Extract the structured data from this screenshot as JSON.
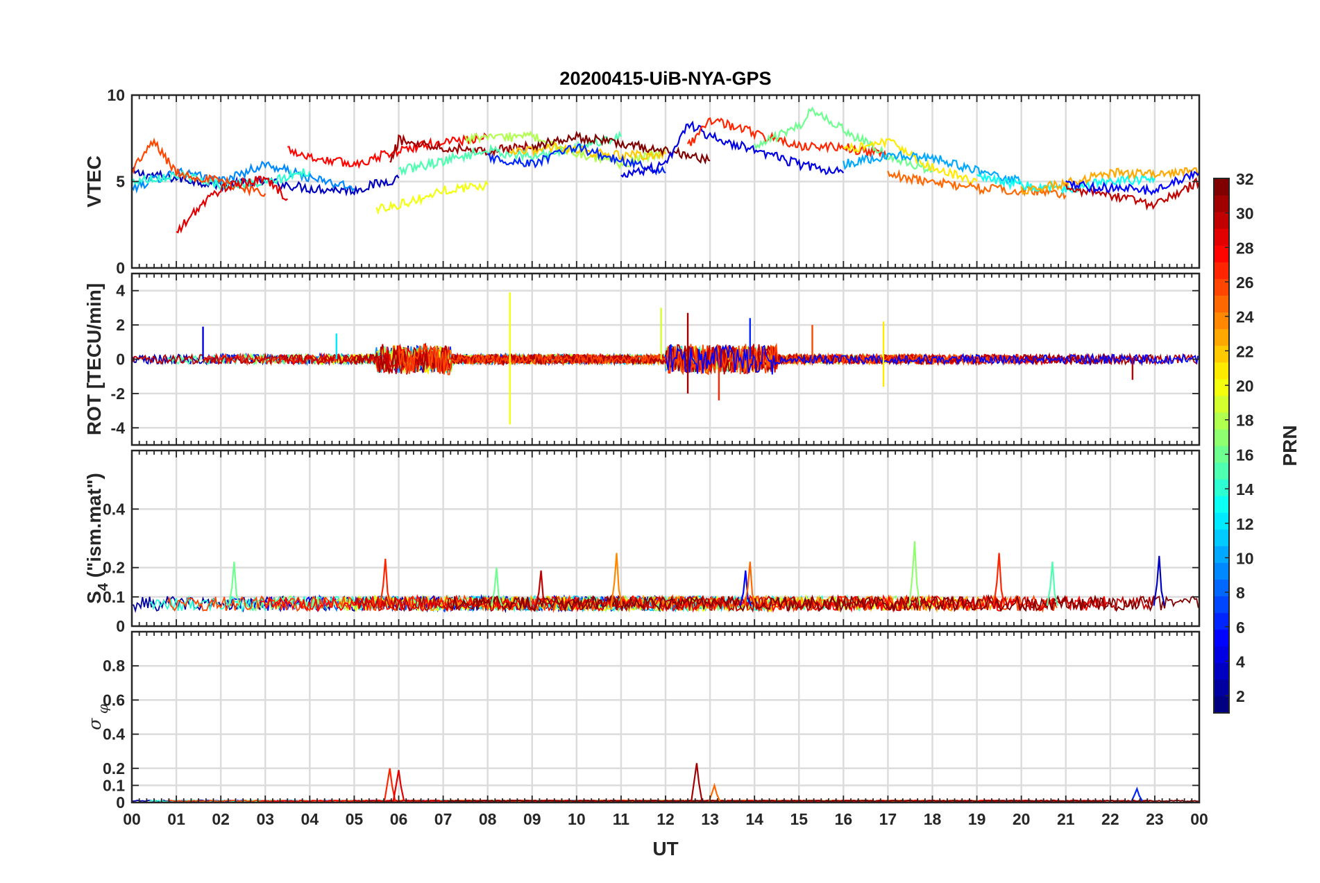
{
  "title": "20200415-UiB-NYA-GPS",
  "xlabel": "UT",
  "x_ticks": [
    "00",
    "01",
    "02",
    "03",
    "04",
    "05",
    "06",
    "07",
    "08",
    "09",
    "10",
    "11",
    "12",
    "13",
    "14",
    "15",
    "16",
    "17",
    "18",
    "19",
    "20",
    "21",
    "22",
    "23",
    "00"
  ],
  "colorbar": {
    "label": "PRN",
    "range": [
      1,
      32
    ],
    "ticks": [
      2,
      4,
      6,
      8,
      10,
      12,
      14,
      16,
      18,
      20,
      22,
      24,
      26,
      28,
      30,
      32
    ],
    "colormap": "jet",
    "levels": 32
  },
  "chart_data": [
    {
      "type": "line",
      "panel": "VTEC",
      "ylabel": "VTEC",
      "ylim": [
        0,
        10
      ],
      "yticks": [
        0,
        5,
        10
      ],
      "xlim_hours": [
        0,
        24
      ],
      "grid": true,
      "series": [
        {
          "prn": 3,
          "x": [
            0,
            1,
            2,
            3,
            4,
            5,
            6
          ],
          "y": [
            5.5,
            5.2,
            4.8,
            5.0,
            4.6,
            4.5,
            5.2
          ]
        },
        {
          "prn": 9,
          "x": [
            0,
            1,
            2,
            3,
            4,
            5
          ],
          "y": [
            4.6,
            5.6,
            5.0,
            6.0,
            5.2,
            4.6
          ]
        },
        {
          "prn": 14,
          "x": [
            0,
            1,
            2,
            3,
            4
          ],
          "y": [
            5.0,
            5.4,
            4.8,
            4.9,
            5.6
          ]
        },
        {
          "prn": 26,
          "x": [
            0,
            0.5,
            1,
            2,
            3
          ],
          "y": [
            5.7,
            7.3,
            5.5,
            5.0,
            4.3
          ]
        },
        {
          "prn": 29,
          "x": [
            1.0,
            1.5,
            2,
            3,
            3.5
          ],
          "y": [
            2.0,
            3.5,
            4.6,
            5.2,
            4.0
          ]
        },
        {
          "prn": 28,
          "x": [
            3.5,
            4,
            5,
            6,
            7,
            8
          ],
          "y": [
            6.9,
            6.4,
            6.0,
            6.8,
            7.3,
            7.5
          ]
        },
        {
          "prn": 20,
          "x": [
            5.5,
            6.5,
            7,
            8
          ],
          "y": [
            3.4,
            4.0,
            4.5,
            4.8
          ]
        },
        {
          "prn": 31,
          "x": [
            5.8,
            6,
            7,
            8,
            9
          ],
          "y": [
            6.0,
            7.4,
            7.0,
            6.8,
            7.0
          ]
        },
        {
          "prn": 15,
          "x": [
            6,
            7,
            8,
            9,
            10,
            11
          ],
          "y": [
            5.6,
            6.2,
            6.8,
            6.4,
            7.0,
            7.6
          ]
        },
        {
          "prn": 18,
          "x": [
            7.5,
            9,
            10,
            11,
            12
          ],
          "y": [
            7.5,
            7.6,
            6.6,
            6.0,
            6.8
          ]
        },
        {
          "prn": 22,
          "x": [
            8.5,
            9.5,
            10,
            11,
            12
          ],
          "y": [
            6.6,
            7.0,
            6.8,
            6.5,
            6.6
          ]
        },
        {
          "prn": 6,
          "x": [
            8,
            9,
            10,
            11,
            12
          ],
          "y": [
            6.4,
            6.0,
            7.0,
            6.2,
            5.5
          ]
        },
        {
          "prn": 32,
          "x": [
            9,
            10,
            11,
            12,
            13
          ],
          "y": [
            7.0,
            7.6,
            7.2,
            6.8,
            6.2
          ]
        },
        {
          "prn": 4,
          "x": [
            11,
            12,
            12.5,
            13,
            14,
            15,
            16
          ],
          "y": [
            5.2,
            6.0,
            8.4,
            7.6,
            6.8,
            6.0,
            5.5
          ]
        },
        {
          "prn": 27,
          "x": [
            12.5,
            13,
            14,
            15,
            16,
            17
          ],
          "y": [
            7.0,
            8.6,
            7.8,
            7.0,
            7.0,
            6.5
          ]
        },
        {
          "prn": 16,
          "x": [
            14,
            15,
            15.3,
            16,
            17,
            18
          ],
          "y": [
            7.0,
            8.2,
            9.2,
            8.0,
            6.5,
            5.6
          ]
        },
        {
          "prn": 21,
          "x": [
            16,
            17,
            18,
            19
          ],
          "y": [
            6.8,
            7.3,
            5.8,
            5.0
          ]
        },
        {
          "prn": 10,
          "x": [
            16,
            17,
            18,
            19,
            20
          ],
          "y": [
            6.0,
            6.5,
            6.4,
            5.6,
            5.0
          ]
        },
        {
          "prn": 25,
          "x": [
            17,
            18,
            19,
            20,
            21
          ],
          "y": [
            5.4,
            5.0,
            4.6,
            4.5,
            4.2
          ]
        },
        {
          "prn": 13,
          "x": [
            19,
            20,
            21,
            22,
            23
          ],
          "y": [
            5.2,
            4.8,
            4.6,
            5.0,
            5.2
          ]
        },
        {
          "prn": 23,
          "x": [
            20,
            21,
            22,
            23,
            24
          ],
          "y": [
            4.5,
            4.9,
            5.5,
            5.4,
            5.6
          ]
        },
        {
          "prn": 30,
          "x": [
            21,
            22,
            23,
            24
          ],
          "y": [
            4.6,
            4.2,
            3.6,
            5.0
          ]
        },
        {
          "prn": 5,
          "x": [
            21,
            22,
            23,
            24
          ],
          "y": [
            4.8,
            4.6,
            4.5,
            5.5
          ]
        }
      ]
    },
    {
      "type": "line",
      "panel": "ROT",
      "ylabel": "ROT [TECU/min]",
      "ylim": [
        -5,
        5
      ],
      "yticks": [
        -4,
        -2,
        0,
        2,
        4
      ],
      "xlim_hours": [
        0,
        24
      ],
      "grid": true,
      "spikes": [
        {
          "prn": 4,
          "x": 1.6,
          "y": 1.9
        },
        {
          "prn": 12,
          "x": 4.6,
          "y": 1.5
        },
        {
          "prn": 20,
          "x": 8.5,
          "y": 3.9
        },
        {
          "prn": 20,
          "x": 8.5,
          "y": -3.8
        },
        {
          "prn": 19,
          "x": 11.9,
          "y": 3.0
        },
        {
          "prn": 31,
          "x": 12.5,
          "y": 2.7
        },
        {
          "prn": 31,
          "x": 12.5,
          "y": -2.0
        },
        {
          "prn": 27,
          "x": 13.2,
          "y": -2.4
        },
        {
          "prn": 6,
          "x": 13.9,
          "y": 2.4
        },
        {
          "prn": 26,
          "x": 15.3,
          "y": 2.0
        },
        {
          "prn": 21,
          "x": 16.9,
          "y": 2.2
        },
        {
          "prn": 21,
          "x": 16.9,
          "y": -1.6
        },
        {
          "prn": 30,
          "x": 22.5,
          "y": -1.2
        }
      ]
    },
    {
      "type": "line",
      "panel": "S4",
      "ylabel": "S4 (\"ism.mat\")",
      "ylim": [
        0,
        0.6
      ],
      "yticks": [
        0,
        0.1,
        0.2,
        0.4
      ],
      "xlim_hours": [
        0,
        24
      ],
      "grid": true,
      "peaks": [
        {
          "prn": 16,
          "x": 2.3,
          "y": 0.22
        },
        {
          "prn": 27,
          "x": 5.7,
          "y": 0.23
        },
        {
          "prn": 16,
          "x": 8.2,
          "y": 0.2
        },
        {
          "prn": 30,
          "x": 9.2,
          "y": 0.19
        },
        {
          "prn": 24,
          "x": 10.9,
          "y": 0.25
        },
        {
          "prn": 5,
          "x": 13.8,
          "y": 0.19
        },
        {
          "prn": 25,
          "x": 13.9,
          "y": 0.22
        },
        {
          "prn": 17,
          "x": 17.6,
          "y": 0.29
        },
        {
          "prn": 27,
          "x": 19.5,
          "y": 0.25
        },
        {
          "prn": 15,
          "x": 20.7,
          "y": 0.22
        },
        {
          "prn": 3,
          "x": 23.1,
          "y": 0.24
        }
      ]
    },
    {
      "type": "line",
      "panel": "sigma_phi",
      "ylabel": "σφ",
      "ylim": [
        0,
        1
      ],
      "yticks": [
        0,
        0.1,
        0.2,
        0.4,
        0.6,
        0.8
      ],
      "xlim_hours": [
        0,
        24
      ],
      "grid": true,
      "peaks": [
        {
          "prn": 27,
          "x": 5.8,
          "y": 0.2
        },
        {
          "prn": 29,
          "x": 6.0,
          "y": 0.19
        },
        {
          "prn": 31,
          "x": 12.7,
          "y": 0.23
        },
        {
          "prn": 25,
          "x": 13.1,
          "y": 0.1
        },
        {
          "prn": 6,
          "x": 22.6,
          "y": 0.08
        }
      ]
    }
  ]
}
